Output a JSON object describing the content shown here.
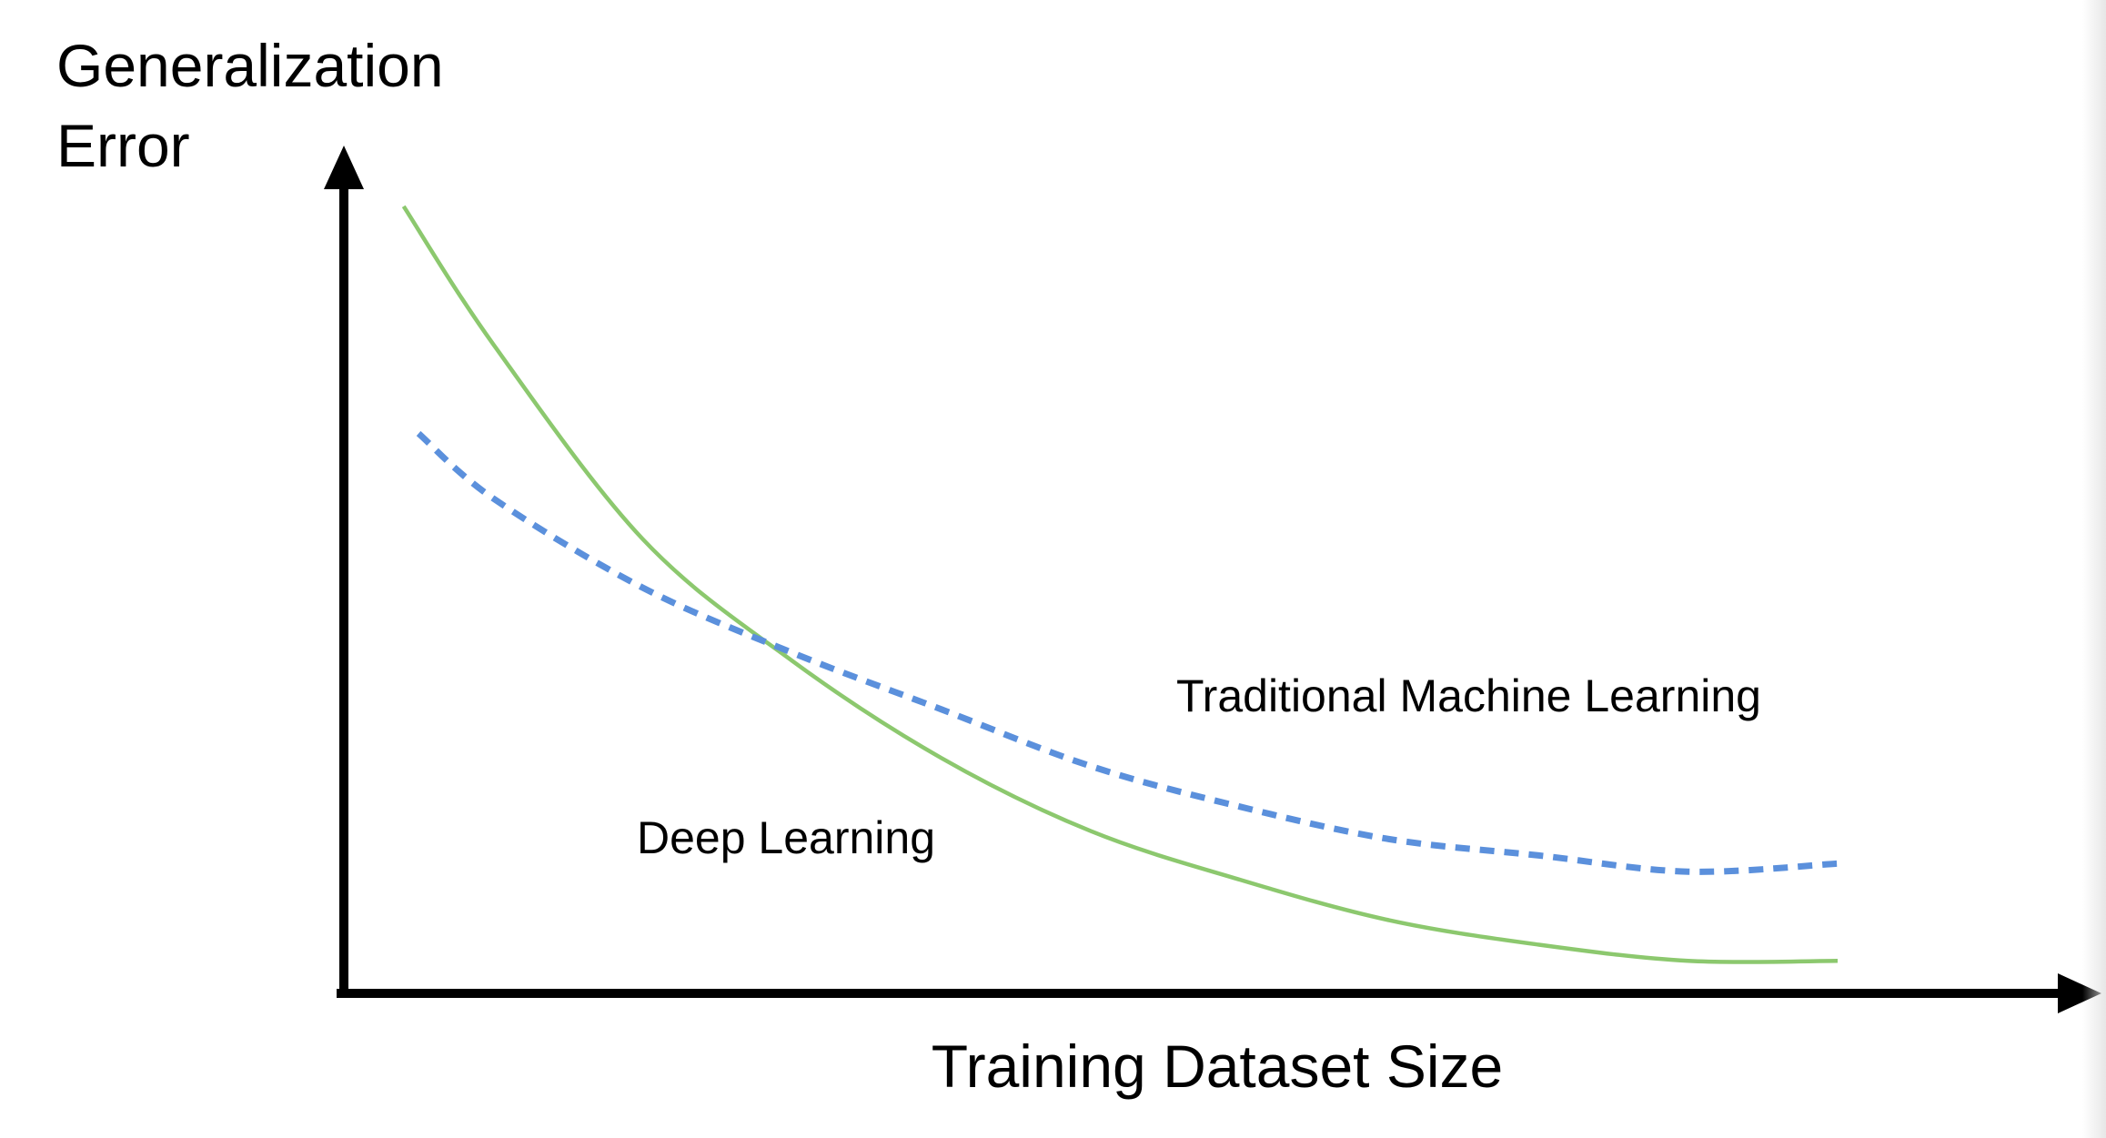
{
  "chart_data": {
    "type": "line",
    "title": "",
    "xlabel": "Training Dataset Size",
    "ylabel_lines": [
      "Generalization",
      "Error"
    ],
    "xlim": [
      0,
      1
    ],
    "ylim": [
      0,
      1
    ],
    "grid": false,
    "legend": "none (series labelled inline)",
    "series": [
      {
        "name": "Deep Learning",
        "style": "solid",
        "color": "#8cc86e",
        "x": [
          0.04,
          0.1,
          0.2,
          0.3,
          0.4,
          0.5,
          0.6,
          0.7,
          0.8,
          0.9,
          1.0
        ],
        "y": [
          0.97,
          0.8,
          0.56,
          0.41,
          0.29,
          0.2,
          0.14,
          0.09,
          0.06,
          0.04,
          0.04
        ]
      },
      {
        "name": "Traditional Machine Learning",
        "style": "dashed",
        "color": "#5b90dc",
        "x": [
          0.05,
          0.1,
          0.2,
          0.3,
          0.4,
          0.5,
          0.6,
          0.7,
          0.8,
          0.9,
          1.0
        ],
        "y": [
          0.69,
          0.61,
          0.5,
          0.42,
          0.35,
          0.28,
          0.23,
          0.19,
          0.17,
          0.15,
          0.16
        ]
      }
    ]
  }
}
